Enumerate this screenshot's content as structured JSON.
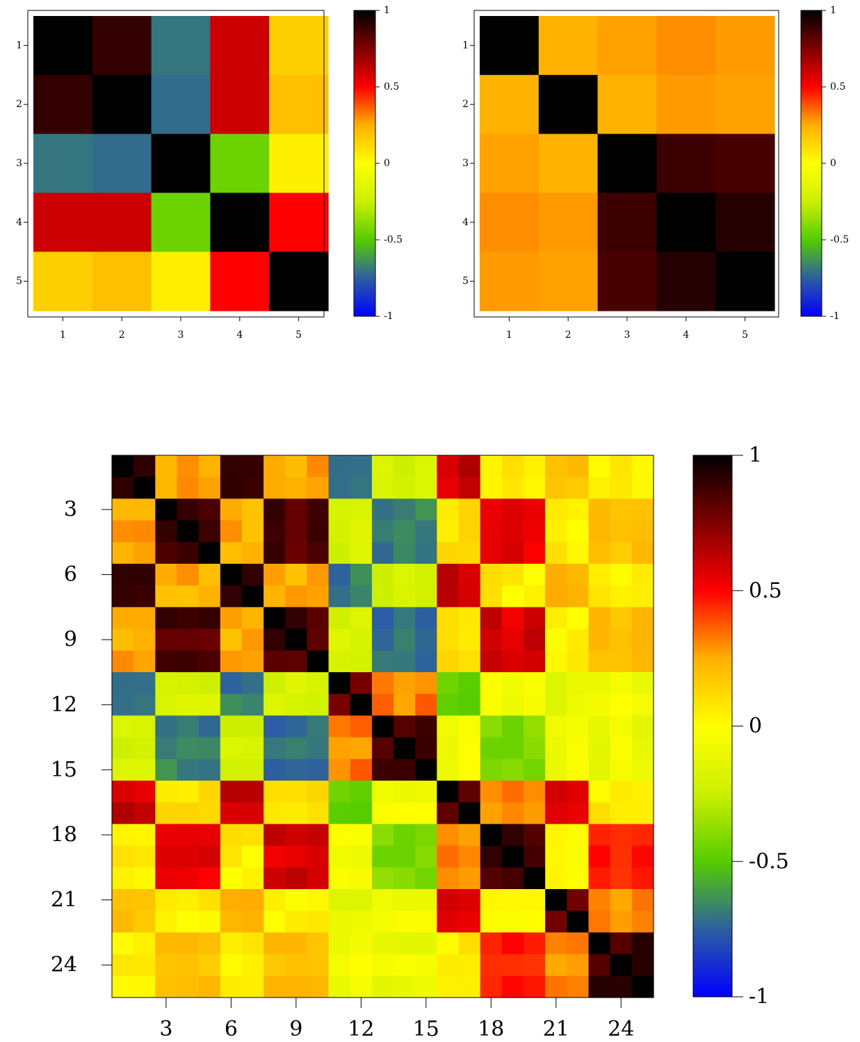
{
  "colorbar_ticks": [
    "1",
    "0.5",
    "0",
    "-0.5",
    "-1"
  ],
  "colormap": {
    "stops": [
      [
        -1,
        "#0000ff"
      ],
      [
        -0.75,
        "#2d5fa0"
      ],
      [
        -0.5,
        "#55cc00"
      ],
      [
        -0.25,
        "#ccf000"
      ],
      [
        0,
        "#ffff00"
      ],
      [
        0.25,
        "#ffb000"
      ],
      [
        0.5,
        "#ff0000"
      ],
      [
        0.75,
        "#800000"
      ],
      [
        1,
        "#000000"
      ]
    ]
  },
  "chart_data": [
    {
      "type": "heatmap",
      "size": 5,
      "x_ticks": [
        "1",
        "2",
        "3",
        "4",
        "5"
      ],
      "y_ticks": [
        "1",
        "2",
        "3",
        "4",
        "5"
      ],
      "zlim": [
        -1,
        1
      ],
      "values": [
        [
          1.0,
          0.9,
          -0.7,
          0.6,
          0.15
        ],
        [
          0.9,
          1.0,
          -0.72,
          0.6,
          0.2
        ],
        [
          -0.7,
          -0.72,
          1.0,
          -0.45,
          0.05
        ],
        [
          0.6,
          0.6,
          -0.45,
          1.0,
          0.5
        ],
        [
          0.15,
          0.2,
          0.05,
          0.5,
          1.0
        ]
      ]
    },
    {
      "type": "heatmap",
      "size": 5,
      "x_ticks": [
        "1",
        "2",
        "3",
        "4",
        "5"
      ],
      "y_ticks": [
        "1",
        "2",
        "3",
        "4",
        "5"
      ],
      "zlim": [
        -1,
        1
      ],
      "values": [
        [
          1.0,
          0.24,
          0.27,
          0.3,
          0.28
        ],
        [
          0.24,
          1.0,
          0.24,
          0.28,
          0.27
        ],
        [
          0.27,
          0.24,
          1.0,
          0.88,
          0.86
        ],
        [
          0.3,
          0.28,
          0.88,
          1.0,
          0.93
        ],
        [
          0.28,
          0.27,
          0.86,
          0.93,
          1.0
        ]
      ]
    },
    {
      "type": "heatmap",
      "size": 25,
      "x_ticks": [
        "3",
        "6",
        "9",
        "12",
        "15",
        "18",
        "21",
        "24"
      ],
      "y_ticks": [
        "3",
        "6",
        "9",
        "12",
        "15",
        "18",
        "21",
        "24"
      ],
      "zlim": [
        -1,
        1
      ],
      "blocks": [
        [
          1,
          2
        ],
        [
          3,
          5
        ],
        [
          6,
          7
        ],
        [
          8,
          10
        ],
        [
          11,
          12
        ],
        [
          13,
          15
        ],
        [
          16,
          17
        ],
        [
          18,
          20
        ],
        [
          21,
          22
        ],
        [
          23,
          25
        ]
      ],
      "block_values": [
        [
          0.9,
          0.28,
          0.9,
          0.25,
          -0.7,
          -0.2,
          0.6,
          0.05,
          0.18,
          0.05
        ],
        [
          0.28,
          0.88,
          0.25,
          0.85,
          -0.2,
          -0.68,
          0.1,
          0.55,
          0.05,
          0.2
        ],
        [
          0.9,
          0.25,
          0.9,
          0.25,
          -0.7,
          -0.2,
          0.6,
          0.05,
          0.25,
          0.05
        ],
        [
          0.25,
          0.85,
          0.25,
          0.85,
          -0.2,
          -0.7,
          0.1,
          0.58,
          0.03,
          0.22
        ],
        [
          -0.7,
          -0.2,
          -0.7,
          -0.2,
          0.8,
          0.32,
          -0.45,
          -0.05,
          -0.12,
          -0.05
        ],
        [
          -0.2,
          -0.68,
          -0.2,
          -0.7,
          0.32,
          0.88,
          -0.05,
          -0.42,
          -0.05,
          -0.08
        ],
        [
          0.6,
          0.1,
          0.6,
          0.1,
          -0.45,
          -0.05,
          0.8,
          0.3,
          0.55,
          0.05
        ],
        [
          0.05,
          0.55,
          0.05,
          0.58,
          -0.05,
          -0.42,
          0.3,
          0.88,
          0.02,
          0.45
        ],
        [
          0.18,
          0.05,
          0.25,
          0.03,
          -0.12,
          -0.05,
          0.55,
          0.02,
          0.8,
          0.3
        ],
        [
          0.05,
          0.2,
          0.05,
          0.22,
          -0.05,
          -0.08,
          0.05,
          0.45,
          0.3,
          0.88
        ]
      ],
      "diagonal": 1.0
    }
  ]
}
